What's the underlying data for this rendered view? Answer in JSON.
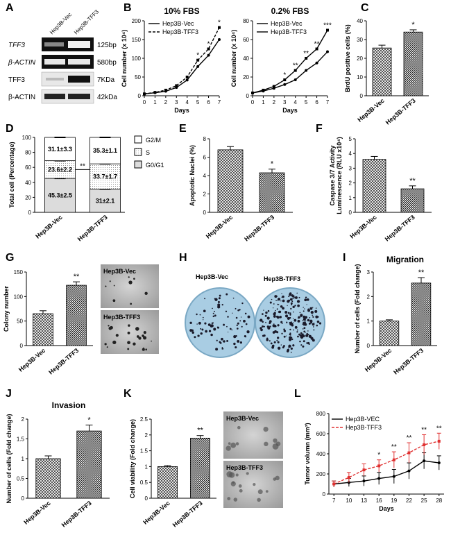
{
  "colors": {
    "bar_light": "#dcdcdc",
    "bar_dark": "#8c8c8c",
    "dish": "#a9cde3",
    "red": "#e03030",
    "gel_bg": "#111111"
  },
  "panel_labels": [
    "A",
    "B",
    "C",
    "D",
    "E",
    "F",
    "G",
    "H",
    "I",
    "J",
    "K",
    "L"
  ],
  "panelA": {
    "columns": [
      "Hep3B-Vec",
      "Hep3B-TFF3"
    ],
    "rows": [
      {
        "gene": "TFF3",
        "size": "125bp"
      },
      {
        "gene": "β-ACTIN",
        "size": "580bp"
      },
      {
        "gene": "TFF3",
        "size": "7KDa"
      },
      {
        "gene": "β-ACTIN",
        "size": "42kDa"
      }
    ]
  },
  "panelH": {
    "labels": [
      "Hep3B-Vec",
      "Hep3B-TFF3"
    ]
  },
  "panelG_images": [
    "Hep3B-Vec",
    "Hep3B-TFF3"
  ],
  "panelK_images": [
    "Hep3B-Vec",
    "Hep3B-TFF3"
  ],
  "chart_data": [
    {
      "id": "B1",
      "type": "line",
      "title": "10% FBS",
      "xlabel": "Days",
      "ylabel": "Cell number (x 10⁴)",
      "x": [
        0,
        1,
        2,
        3,
        4,
        5,
        6,
        7
      ],
      "xlim": [
        0,
        7
      ],
      "ylim": [
        0,
        200
      ],
      "yticks": [
        0,
        50,
        100,
        150,
        200
      ],
      "series": [
        {
          "name": "Hep3B-Vec",
          "values": [
            5,
            8,
            12,
            22,
            42,
            78,
            108,
            150
          ]
        },
        {
          "name": "Hep3B-TFF3",
          "values": [
            5,
            9,
            15,
            27,
            50,
            95,
            125,
            182
          ]
        }
      ],
      "annotations": [
        "*",
        "*",
        "*"
      ]
    },
    {
      "id": "B2",
      "type": "line",
      "title": "0.2% FBS",
      "xlabel": "Days",
      "ylabel": "Cell number (x 10⁴)",
      "x": [
        0,
        1,
        2,
        3,
        4,
        5,
        6,
        7
      ],
      "xlim": [
        0,
        7
      ],
      "ylim": [
        0,
        80
      ],
      "yticks": [
        0,
        20,
        40,
        60,
        80
      ],
      "series": [
        {
          "name": "Hep3B-Vec",
          "values": [
            3,
            5,
            8,
            12,
            17,
            27,
            35,
            47
          ]
        },
        {
          "name": "Hep3B-TFF3",
          "values": [
            3,
            6,
            10,
            17,
            27,
            40,
            50,
            70
          ]
        }
      ],
      "annotations": [
        "*",
        "**",
        "**",
        "**",
        "***"
      ]
    },
    {
      "id": "C",
      "type": "bar",
      "ylabel": "BrdU positive cells (%)",
      "ylim": [
        0,
        40
      ],
      "yticks": [
        0,
        10,
        20,
        30,
        40
      ],
      "categories": [
        "Hep3B-Vec",
        "Hep3B-TFF3"
      ],
      "values": [
        25.5,
        34
      ],
      "errors": [
        1.5,
        1.2
      ],
      "sig": "*"
    },
    {
      "id": "D",
      "type": "bar",
      "ylabel": "Total cell (Percentage)",
      "ylim": [
        0,
        100
      ],
      "yticks": [
        0,
        20,
        40,
        60,
        80,
        100
      ],
      "categories": [
        "Hep3B-Vec",
        "Hep3B-TFF3"
      ],
      "stacks": [
        "G0/G1",
        "S",
        "G2/M"
      ],
      "series": [
        {
          "name": "G0/G1",
          "values": [
            45.3,
            31
          ],
          "labels": [
            "45.3±2.5",
            "31±2.1"
          ]
        },
        {
          "name": "S",
          "values": [
            23.6,
            33.7
          ],
          "labels": [
            "23.6±2.2",
            "33.7±1.7"
          ]
        },
        {
          "name": "G2/M",
          "values": [
            31.1,
            35.3
          ],
          "labels": [
            "31.1±3.3",
            "35.3±1.1"
          ]
        }
      ],
      "legend": [
        "G2/M",
        "S",
        "G0/G1"
      ],
      "sig": "**"
    },
    {
      "id": "E",
      "type": "bar",
      "ylabel": "Apoptotic Nuclei (%)",
      "ylim": [
        0,
        8
      ],
      "yticks": [
        0,
        2,
        4,
        6,
        8
      ],
      "categories": [
        "Hep3B-Vec",
        "Hep3B-TFF3"
      ],
      "values": [
        6.8,
        4.3
      ],
      "errors": [
        0.35,
        0.4
      ],
      "sig": "*"
    },
    {
      "id": "F",
      "type": "bar",
      "ylabel": "Caspase 3/7 Activity Luminescence (RLU x10⁴)",
      "ylim": [
        0,
        5
      ],
      "yticks": [
        0,
        1,
        2,
        3,
        4,
        5
      ],
      "categories": [
        "Hep3B-Vec",
        "Hep3B-TFF3"
      ],
      "values": [
        3.6,
        1.6
      ],
      "errors": [
        0.2,
        0.2
      ],
      "sig": "**"
    },
    {
      "id": "G",
      "type": "bar",
      "ylabel": "Colony number",
      "ylim": [
        0,
        150
      ],
      "yticks": [
        0,
        50,
        100,
        150
      ],
      "categories": [
        "Hep3B-Vec",
        "Hep3B-TFF3"
      ],
      "values": [
        65,
        123
      ],
      "errors": [
        6,
        7
      ],
      "sig": "**"
    },
    {
      "id": "I",
      "type": "bar",
      "title": "Migration",
      "ylabel": "Number of cells (Fold change)",
      "ylim": [
        0,
        3
      ],
      "yticks": [
        0,
        1,
        2,
        3
      ],
      "categories": [
        "Hep3B-Vec",
        "Hep3B-TFF3"
      ],
      "values": [
        1.0,
        2.55
      ],
      "errors": [
        0.05,
        0.22
      ],
      "sig": "**"
    },
    {
      "id": "J",
      "type": "bar",
      "title": "Invasion",
      "ylabel": "Number of cells (Fold change)",
      "ylim": [
        0,
        2.0
      ],
      "yticks": [
        0.0,
        0.5,
        1.0,
        1.5,
        2.0
      ],
      "categories": [
        "Hep3B-Vec",
        "Hep3B-TFF3"
      ],
      "values": [
        1.0,
        1.7
      ],
      "errors": [
        0.07,
        0.15
      ],
      "sig": "*"
    },
    {
      "id": "K",
      "type": "bar",
      "ylabel": "Cell viability (Fold change)",
      "ylim": [
        0,
        2.5
      ],
      "yticks": [
        0.0,
        0.5,
        1.0,
        1.5,
        2.0,
        2.5
      ],
      "categories": [
        "Hep3B-Vec",
        "Hep3B-TFF3"
      ],
      "values": [
        1.0,
        1.9
      ],
      "errors": [
        0.03,
        0.08
      ],
      "sig": "**"
    },
    {
      "id": "L",
      "type": "line",
      "xlabel": "Days",
      "ylabel": "Tumor volumn (mm³)",
      "x": [
        7,
        10,
        13,
        16,
        19,
        22,
        25,
        28
      ],
      "xlim": [
        6,
        29
      ],
      "ylim": [
        0,
        800
      ],
      "yticks": [
        0,
        200,
        400,
        600,
        800
      ],
      "series": [
        {
          "name": "Hep3B-VEC",
          "values": [
            100,
            115,
            130,
            155,
            175,
            230,
            330,
            310
          ],
          "errors": [
            30,
            40,
            50,
            60,
            70,
            80,
            80,
            70
          ]
        },
        {
          "name": "Hep3B-TFF3",
          "values": [
            100,
            165,
            240,
            280,
            340,
            410,
            490,
            525
          ],
          "errors": [
            30,
            50,
            60,
            60,
            80,
            100,
            100,
            80
          ]
        }
      ],
      "annotations": [
        "*",
        "**",
        "**",
        "**",
        "**"
      ]
    }
  ]
}
